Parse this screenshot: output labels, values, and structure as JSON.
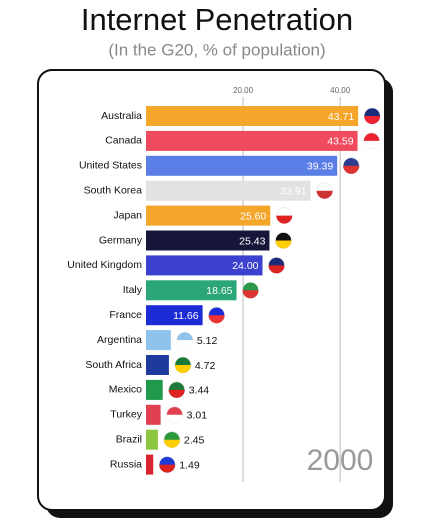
{
  "chart_data": {
    "type": "bar",
    "orientation": "horizontal",
    "title": "Internet Penetration",
    "subtitle": "(In the G20, % of population)",
    "categories": [
      "Australia",
      "Canada",
      "United States",
      "South Korea",
      "Japan",
      "Germany",
      "United Kingdom",
      "Italy",
      "France",
      "Argentina",
      "South Africa",
      "Mexico",
      "Turkey",
      "Brazil",
      "Russia"
    ],
    "values": [
      43.71,
      43.59,
      39.39,
      33.91,
      25.6,
      25.43,
      24,
      18.65,
      11.66,
      5.12,
      4.72,
      3.44,
      3.01,
      2.45,
      1.49
    ],
    "value_labels": [
      "43.71",
      "43.59",
      "39.39",
      "33.91",
      "25.60",
      "25.43",
      "24.00",
      "18.65",
      "11.66",
      "5.12",
      "4.72",
      "3.44",
      "3.01",
      "2.45",
      "1.49"
    ],
    "colors": [
      "#f4a62a",
      "#ef4a5e",
      "#5b7ee6",
      "#e2e2e2",
      "#f4a62a",
      "#16163a",
      "#3b40cf",
      "#2aa678",
      "#1b2bd6",
      "#8fc3ec",
      "#1f3a9e",
      "#1e9a4a",
      "#e0404f",
      "#8cc63f",
      "#d8242e"
    ],
    "xlim": [
      0,
      48
    ],
    "xticks": [
      {
        "value": 20,
        "label": "20.00"
      },
      {
        "value": 40,
        "label": "40.00"
      }
    ],
    "grid": true,
    "annotation": "2000"
  }
}
